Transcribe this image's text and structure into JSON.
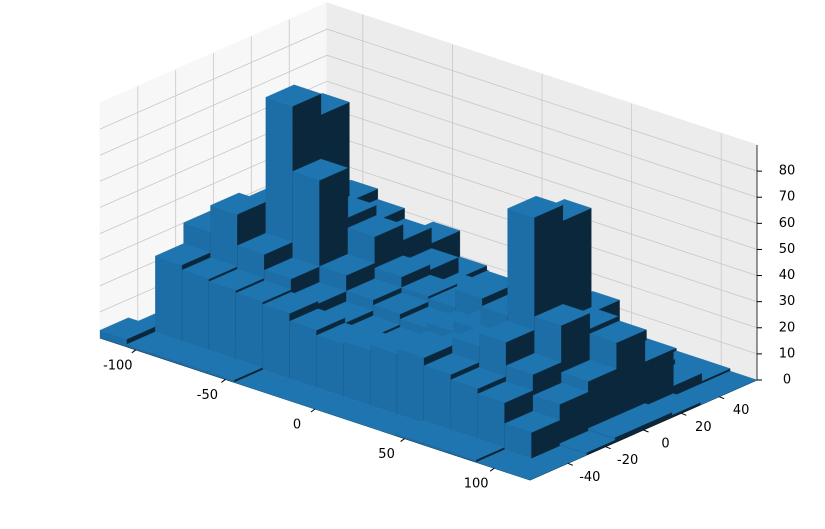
{
  "chart_data": {
    "type": "bar3d",
    "x_bins": [
      -120,
      -105,
      -90,
      -75,
      -60,
      -45,
      -30,
      -15,
      0,
      15,
      30,
      45,
      60,
      75,
      90,
      105,
      120
    ],
    "y_bins": [
      -60,
      -45,
      -30,
      -15,
      0,
      15,
      30,
      45,
      60
    ],
    "values": [
      [
        3,
        0,
        0,
        0,
        0,
        0,
        0,
        0
      ],
      [
        1,
        30,
        38,
        20,
        12,
        8,
        4,
        0
      ],
      [
        1,
        28,
        48,
        45,
        30,
        18,
        8,
        2
      ],
      [
        1,
        27,
        36,
        88,
        80,
        42,
        20,
        5
      ],
      [
        1,
        26,
        30,
        63,
        44,
        38,
        22,
        6
      ],
      [
        0,
        25,
        24,
        30,
        40,
        34,
        28,
        8
      ],
      [
        0,
        22,
        20,
        24,
        28,
        26,
        18,
        6
      ],
      [
        0,
        20,
        18,
        22,
        24,
        20,
        16,
        5
      ],
      [
        0,
        21,
        17,
        20,
        23,
        22,
        14,
        4
      ],
      [
        0,
        23,
        19,
        22,
        30,
        25,
        15,
        3
      ],
      [
        0,
        25,
        22,
        26,
        24,
        20,
        12,
        3
      ],
      [
        1,
        22,
        28,
        35,
        30,
        22,
        10,
        2
      ],
      [
        1,
        20,
        33,
        76,
        70,
        30,
        8,
        2
      ],
      [
        1,
        18,
        24,
        38,
        32,
        22,
        6,
        1
      ],
      [
        0,
        10,
        16,
        20,
        30,
        18,
        4,
        1
      ],
      [
        0,
        0,
        1,
        2,
        2,
        1,
        0,
        0
      ]
    ],
    "color": "#1f77b4",
    "xlim": [
      -120,
      120
    ],
    "ylim": [
      -60,
      60
    ],
    "zlim": [
      0,
      90
    ],
    "xticks": [
      -100,
      -50,
      0,
      50,
      100
    ],
    "yticks": [
      -40,
      -20,
      0,
      20,
      40
    ],
    "zticks": [
      0,
      10,
      20,
      30,
      40,
      50,
      60,
      70,
      80
    ],
    "grid": true
  }
}
